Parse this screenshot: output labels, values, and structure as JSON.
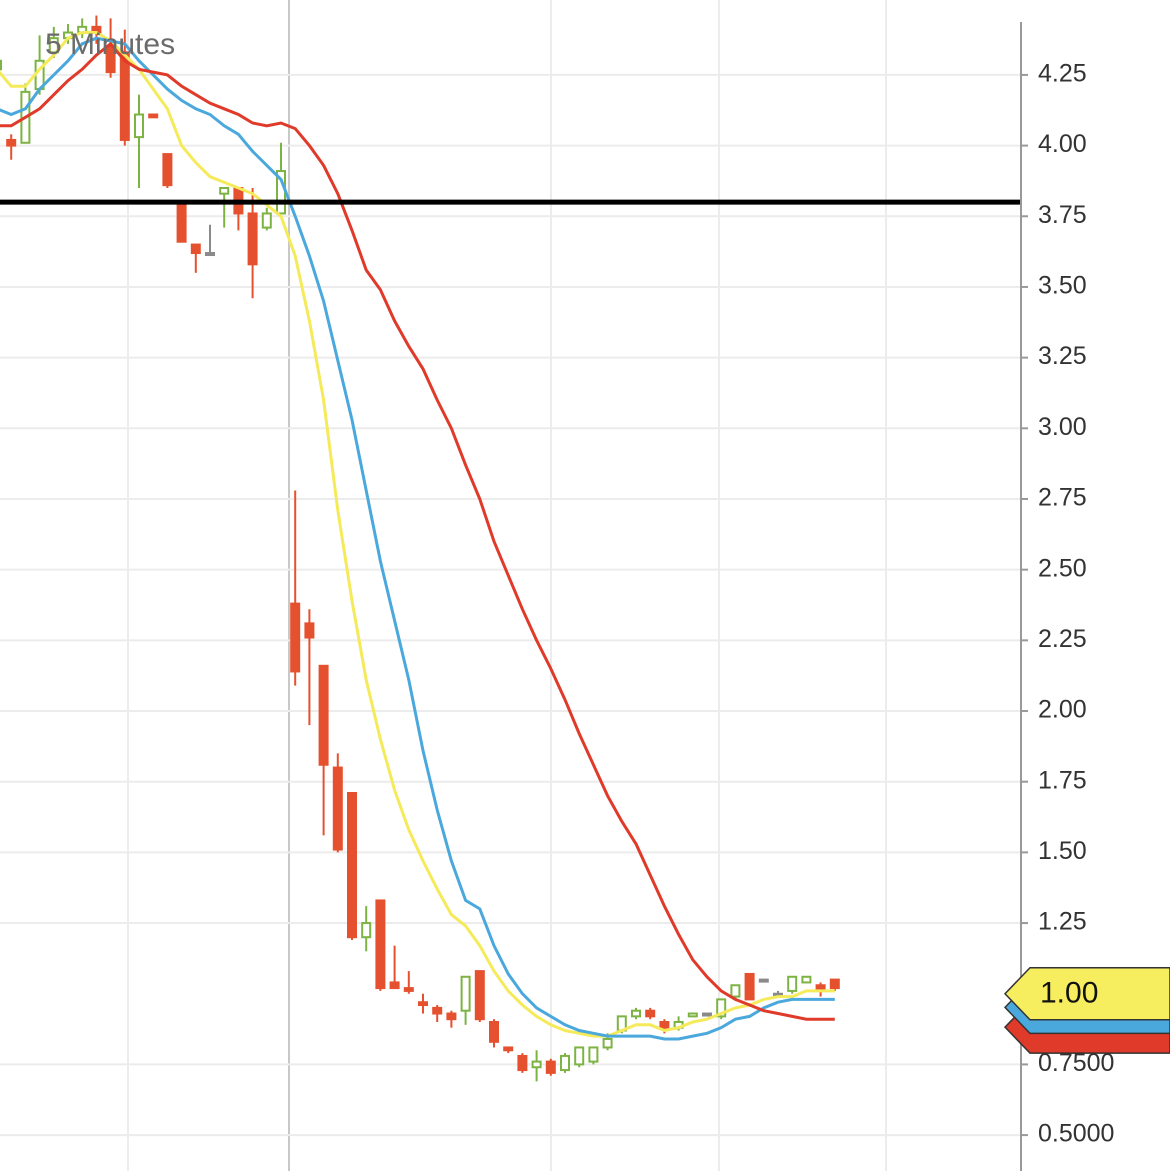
{
  "chart_data": {
    "type": "candlestick",
    "title": "5 Minutes",
    "open": [
      4.27,
      4.02,
      4.01,
      4.2,
      4.33,
      4.38,
      4.4,
      4.42,
      4.35,
      4.33,
      4.03,
      4.11,
      3.97,
      3.79,
      3.65,
      3.62,
      3.83,
      3.85,
      3.76,
      3.71,
      3.76,
      2.38,
      2.31,
      2.16,
      1.8,
      1.71,
      1.2,
      1.33,
      1.04,
      1.02,
      0.97,
      0.95,
      0.93,
      0.94,
      1.08,
      0.9,
      0.81,
      0.78,
      0.74,
      0.76,
      0.73,
      0.75,
      0.76,
      0.81,
      0.87,
      0.92,
      0.94,
      0.9,
      0.88,
      0.92,
      0.93,
      0.92,
      0.99,
      1.07,
      1.05,
      1.0,
      1.01,
      1.04,
      1.03,
      1.05
    ],
    "high": [
      4.33,
      4.04,
      4.22,
      4.39,
      4.42,
      4.43,
      4.45,
      4.46,
      4.45,
      4.41,
      4.18,
      4.11,
      3.97,
      3.79,
      3.65,
      3.72,
      3.85,
      3.85,
      3.85,
      3.78,
      4.01,
      2.78,
      2.36,
      2.16,
      1.85,
      1.71,
      1.31,
      1.33,
      1.17,
      1.08,
      1.0,
      0.96,
      0.94,
      1.06,
      1.08,
      0.91,
      0.81,
      0.79,
      0.8,
      0.77,
      0.79,
      0.81,
      0.81,
      0.86,
      0.92,
      0.95,
      0.95,
      0.91,
      0.92,
      0.93,
      0.93,
      0.98,
      1.03,
      1.07,
      1.05,
      1.01,
      1.06,
      1.06,
      1.04,
      1.05
    ],
    "low": [
      4.24,
      3.95,
      4.01,
      4.18,
      4.31,
      4.36,
      4.38,
      4.36,
      4.24,
      4.0,
      3.85,
      4.1,
      3.85,
      3.66,
      3.55,
      3.61,
      3.71,
      3.7,
      3.46,
      3.7,
      3.76,
      2.09,
      1.95,
      1.56,
      1.5,
      1.19,
      1.15,
      1.01,
      1.02,
      1.0,
      0.93,
      0.9,
      0.88,
      0.89,
      0.9,
      0.81,
      0.79,
      0.72,
      0.69,
      0.71,
      0.72,
      0.74,
      0.75,
      0.8,
      0.86,
      0.91,
      0.91,
      0.86,
      0.87,
      0.92,
      0.93,
      0.91,
      0.98,
      0.98,
      1.05,
      0.99,
      1.0,
      1.04,
      0.99,
      1.01
    ],
    "close": [
      4.3,
      4.0,
      4.19,
      4.3,
      4.38,
      4.4,
      4.42,
      4.4,
      4.26,
      4.02,
      4.11,
      4.1,
      3.86,
      3.66,
      3.62,
      3.62,
      3.85,
      3.76,
      3.58,
      3.76,
      3.91,
      2.14,
      2.26,
      1.81,
      1.51,
      1.2,
      1.25,
      1.02,
      1.02,
      1.01,
      0.96,
      0.93,
      0.91,
      1.06,
      0.91,
      0.83,
      0.8,
      0.73,
      0.76,
      0.72,
      0.78,
      0.81,
      0.81,
      0.84,
      0.92,
      0.94,
      0.92,
      0.88,
      0.9,
      0.93,
      0.93,
      0.98,
      1.03,
      0.98,
      1.05,
      1.0,
      1.06,
      1.06,
      1.01,
      1.02
    ],
    "colors": {
      "up": "#7cb342",
      "down": "#e5502f",
      "flat": "#8a8a8a"
    },
    "lines": [
      {
        "color": "#f5ea5a",
        "values": [
          4.27,
          4.21,
          4.21,
          4.27,
          4.32,
          4.38,
          4.4,
          4.4,
          4.37,
          4.32,
          4.27,
          4.2,
          4.13,
          4.0,
          3.94,
          3.89,
          3.87,
          3.85,
          3.83,
          3.79,
          3.75,
          3.61,
          3.38,
          3.1,
          2.71,
          2.39,
          2.11,
          1.9,
          1.72,
          1.58,
          1.47,
          1.37,
          1.28,
          1.24,
          1.17,
          1.08,
          1.01,
          0.96,
          0.92,
          0.89,
          0.87,
          0.86,
          0.85,
          0.85,
          0.87,
          0.89,
          0.89,
          0.87,
          0.88,
          0.9,
          0.91,
          0.93,
          0.95,
          0.96,
          0.98,
          0.99,
          0.99,
          1.01,
          1.01,
          1.01
        ]
      },
      {
        "color": "#4aa8dc",
        "values": [
          4.13,
          4.11,
          4.13,
          4.2,
          4.25,
          4.3,
          4.36,
          4.38,
          4.37,
          4.36,
          4.3,
          4.25,
          4.2,
          4.16,
          4.13,
          4.11,
          4.07,
          4.04,
          3.98,
          3.93,
          3.88,
          3.75,
          3.61,
          3.45,
          3.24,
          3.03,
          2.78,
          2.53,
          2.32,
          2.11,
          1.86,
          1.65,
          1.47,
          1.33,
          1.3,
          1.17,
          1.07,
          1.0,
          0.95,
          0.92,
          0.89,
          0.87,
          0.86,
          0.85,
          0.85,
          0.85,
          0.85,
          0.84,
          0.84,
          0.85,
          0.86,
          0.88,
          0.91,
          0.92,
          0.95,
          0.97,
          0.98,
          0.98,
          0.98,
          0.98
        ]
      },
      {
        "color": "#e03a2a",
        "values": [
          4.07,
          4.07,
          4.1,
          4.13,
          4.18,
          4.23,
          4.27,
          4.32,
          4.36,
          4.3,
          4.27,
          4.26,
          4.25,
          4.21,
          4.18,
          4.15,
          4.13,
          4.11,
          4.08,
          4.07,
          4.08,
          4.06,
          4.0,
          3.93,
          3.83,
          3.7,
          3.56,
          3.49,
          3.38,
          3.29,
          3.21,
          3.1,
          3.0,
          2.87,
          2.75,
          2.6,
          2.48,
          2.36,
          2.25,
          2.15,
          2.04,
          1.92,
          1.81,
          1.7,
          1.61,
          1.53,
          1.42,
          1.31,
          1.21,
          1.12,
          1.06,
          1.01,
          0.98,
          0.96,
          0.94,
          0.93,
          0.92,
          0.91,
          0.91,
          0.91
        ]
      }
    ],
    "hline": {
      "value": 3.8,
      "color": "#000000"
    },
    "price_tag": {
      "value": 1.0,
      "label": "1.00",
      "color": "#f7ee5f"
    },
    "ylim": [
      0.373,
      4.515
    ],
    "yticks": [
      {
        "value": 0.5,
        "label": "0.5000"
      },
      {
        "value": 0.75,
        "label": "0.7500"
      },
      1.25,
      {
        "value": 1.5,
        "label": "1.50"
      },
      1.75,
      {
        "value": 2,
        "label": "2.00"
      },
      2.25,
      {
        "value": 2.5,
        "label": "2.50"
      },
      2.75,
      {
        "value": 3,
        "label": "3.00"
      },
      3.25,
      {
        "value": 3.5,
        "label": "3.50"
      },
      3.75,
      {
        "value": 4,
        "label": "4.00"
      },
      4.25
    ],
    "grid": true
  }
}
